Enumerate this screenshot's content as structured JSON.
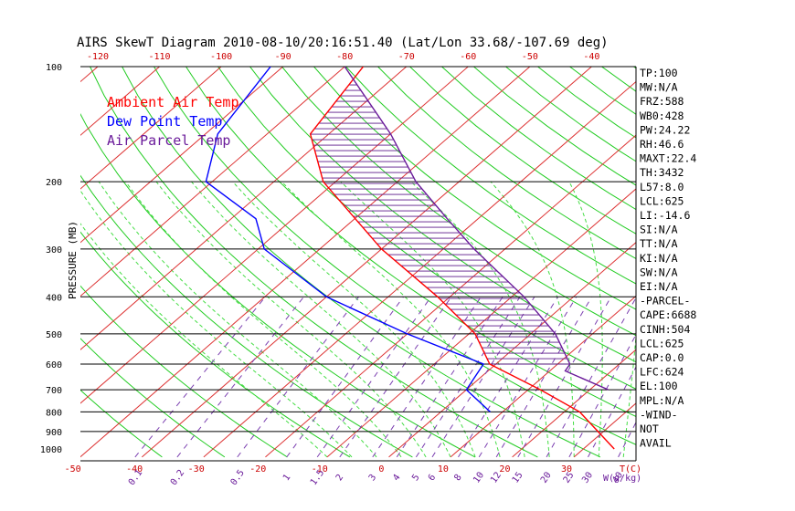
{
  "title": "AIRS SkewT Diagram 2010-08-10/20:16:51.40 (Lat/Lon 33.68/-107.69 deg)",
  "legend": [
    {
      "label": "Ambient Air Temp",
      "color": "#ff0000"
    },
    {
      "label": "Dew Point Temp",
      "color": "#0000ff"
    },
    {
      "label": "Air Parcel Temp",
      "color": "#6a1b9a"
    }
  ],
  "stats": [
    "TP:100",
    "MW:N/A",
    "FRZ:588",
    "WB0:428",
    "PW:24.22",
    "RH:46.6",
    "MAXT:22.4",
    "TH:3432",
    "L57:8.0",
    "LCL:625",
    "LI:-14.6",
    "SI:N/A",
    "TT:N/A",
    "KI:N/A",
    "SW:N/A",
    "EI:N/A",
    "-PARCEL-",
    "CAPE:6688",
    "CINH:504",
    "LCL:625",
    "CAP:0.0",
    "LFC:624",
    "EL:100",
    "MPL:N/A",
    "-WIND-",
    "NOT",
    "AVAIL"
  ],
  "chart_data": {
    "type": "line",
    "title": "AIRS SkewT Diagram 2010-08-10/20:16:51.40 (Lat/Lon 33.68/-107.69 deg)",
    "ylabel": "PRESSURE (MB)",
    "xlabel": "T(C)",
    "mixing_ratio_unit": "W(g/kg)",
    "y_scale": "log-reversed",
    "ylim": [
      1000,
      100
    ],
    "xlim_bottom": [
      -50,
      35
    ],
    "pressure_ticks": [
      100,
      200,
      300,
      400,
      500,
      600,
      700,
      800,
      900,
      1000
    ],
    "bottom_temp_ticks": [
      -50,
      -40,
      -30,
      -20,
      -10,
      0,
      10,
      20,
      30
    ],
    "top_temp_ticks": [
      -120,
      -110,
      -100,
      -90,
      -80,
      -70,
      -60,
      -50,
      -40
    ],
    "mixing_ratio_ticks": [
      "0.1",
      "0.2",
      "0.5",
      "1",
      "1.5",
      "2",
      "3",
      "4",
      "5",
      "6",
      "8",
      "10",
      "12",
      "15",
      "20",
      "25",
      "30",
      "40"
    ],
    "grid": true,
    "legend_position": "top-left",
    "series": [
      {
        "name": "Ambient Air Temp",
        "color": "#ff0000",
        "points": [
          [
            1000,
            35
          ],
          [
            800,
            22.5
          ],
          [
            700,
            12
          ],
          [
            600,
            -1
          ],
          [
            500,
            -9
          ],
          [
            400,
            -22
          ],
          [
            300,
            -40
          ],
          [
            200,
            -62
          ],
          [
            150,
            -73
          ],
          [
            100,
            -77
          ]
        ]
      },
      {
        "name": "Dew Point Temp",
        "color": "#0000ff",
        "points": [
          [
            800,
            8
          ],
          [
            700,
            0
          ],
          [
            600,
            -2
          ],
          [
            500,
            -20
          ],
          [
            400,
            -40
          ],
          [
            300,
            -59
          ],
          [
            250,
            -66
          ],
          [
            200,
            -81
          ],
          [
            150,
            -88
          ],
          [
            100,
            -92
          ]
        ]
      },
      {
        "name": "Air Parcel Temp",
        "color": "#6a1b9a",
        "points": [
          [
            700,
            23
          ],
          [
            625,
            12.5
          ],
          [
            600,
            12
          ],
          [
            500,
            4
          ],
          [
            400,
            -8
          ],
          [
            300,
            -25
          ],
          [
            250,
            -35
          ],
          [
            200,
            -47
          ],
          [
            150,
            -60
          ],
          [
            100,
            -80
          ]
        ]
      }
    ]
  }
}
